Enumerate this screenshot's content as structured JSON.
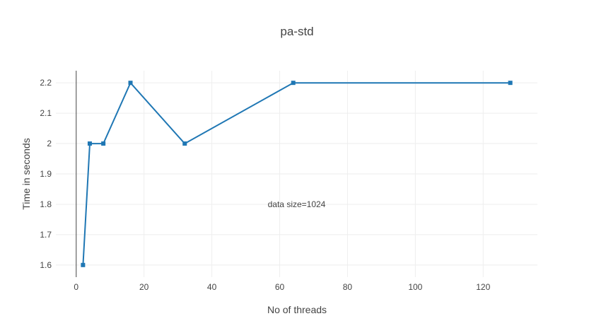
{
  "chart_data": {
    "type": "line",
    "title": "pa-std",
    "xlabel": "No of threads",
    "ylabel": "Time in seconds",
    "xlim": [
      -6,
      136
    ],
    "ylim": [
      1.56,
      2.24
    ],
    "x_ticks": [
      0,
      20,
      40,
      60,
      80,
      100,
      120
    ],
    "y_ticks": [
      1.6,
      1.7,
      1.8,
      1.9,
      2,
      2.1,
      2.2
    ],
    "x_tick_labels": [
      "0",
      "20",
      "40",
      "60",
      "80",
      "100",
      "120"
    ],
    "y_tick_labels": [
      "1.6",
      "1.7",
      "1.8",
      "1.9",
      "2",
      "2.1",
      "2.2"
    ],
    "grid": true,
    "series": [
      {
        "x": [
          2,
          4,
          8,
          16,
          32,
          64,
          128
        ],
        "y": [
          1.6,
          2.0,
          2.0,
          2.2,
          2.0,
          2.2,
          2.2
        ],
        "color": "#1f77b4",
        "marker": "square"
      }
    ],
    "annotations": [
      {
        "text": "data size=1024",
        "x": 65,
        "y": 1.8
      }
    ]
  }
}
